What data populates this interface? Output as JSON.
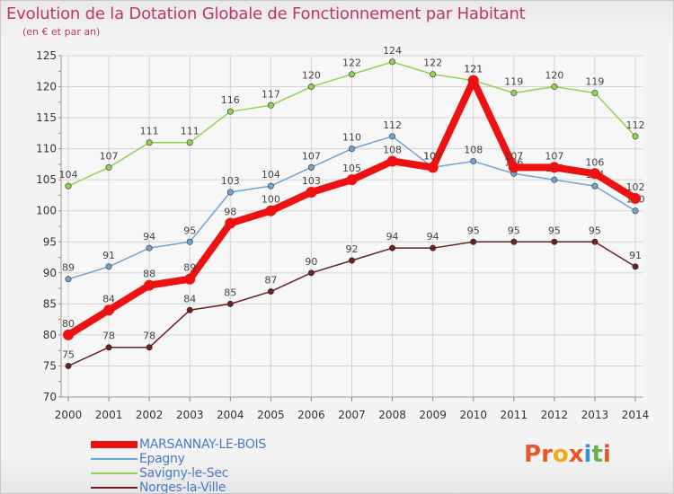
{
  "title": "Evolution de la Dotation Globale de Fonctionnement par Habitant",
  "subtitle": "(en € et par an)",
  "logo": {
    "text": "Proxiti",
    "colors": [
      "#e8562a",
      "#f2a81d",
      "#3a8fd6",
      "#6ab04c"
    ]
  },
  "chart_data": {
    "type": "line",
    "x": [
      "2000",
      "2001",
      "2002",
      "2003",
      "2004",
      "2005",
      "2006",
      "2007",
      "2008",
      "2009",
      "2010",
      "2011",
      "2012",
      "2013",
      "2014"
    ],
    "ylim": [
      70,
      125
    ],
    "yticks": [
      70,
      75,
      80,
      85,
      90,
      95,
      100,
      105,
      110,
      115,
      120,
      125
    ],
    "grid": true,
    "legend_position": "bottom-left",
    "series": [
      {
        "name": "Norges-la-Ville",
        "color": "#6b1f22",
        "values": [
          75,
          78,
          78,
          84,
          85,
          87,
          90,
          92,
          94,
          94,
          95,
          95,
          95,
          95,
          91
        ]
      },
      {
        "name": "Savigny-le-Sec",
        "color": "#8fd44e",
        "values": [
          104,
          107,
          111,
          111,
          116,
          117,
          120,
          122,
          124,
          122,
          121,
          119,
          120,
          119,
          112
        ]
      },
      {
        "name": "Epagny",
        "color": "#6fa3d4",
        "values": [
          89,
          91,
          94,
          95,
          103,
          104,
          107,
          110,
          112,
          107,
          108,
          106,
          105,
          104,
          100
        ]
      },
      {
        "name": "MARSANNAY-LE-BOIS",
        "color": "#ee1111",
        "values": [
          80,
          84,
          88,
          89,
          98,
          100,
          103,
          105,
          108,
          107,
          121,
          107,
          107,
          106,
          102
        ]
      }
    ],
    "legend_order": [
      "MARSANNAY-LE-BOIS",
      "Epagny",
      "Savigny-le-Sec",
      "Norges-la-Ville"
    ]
  }
}
